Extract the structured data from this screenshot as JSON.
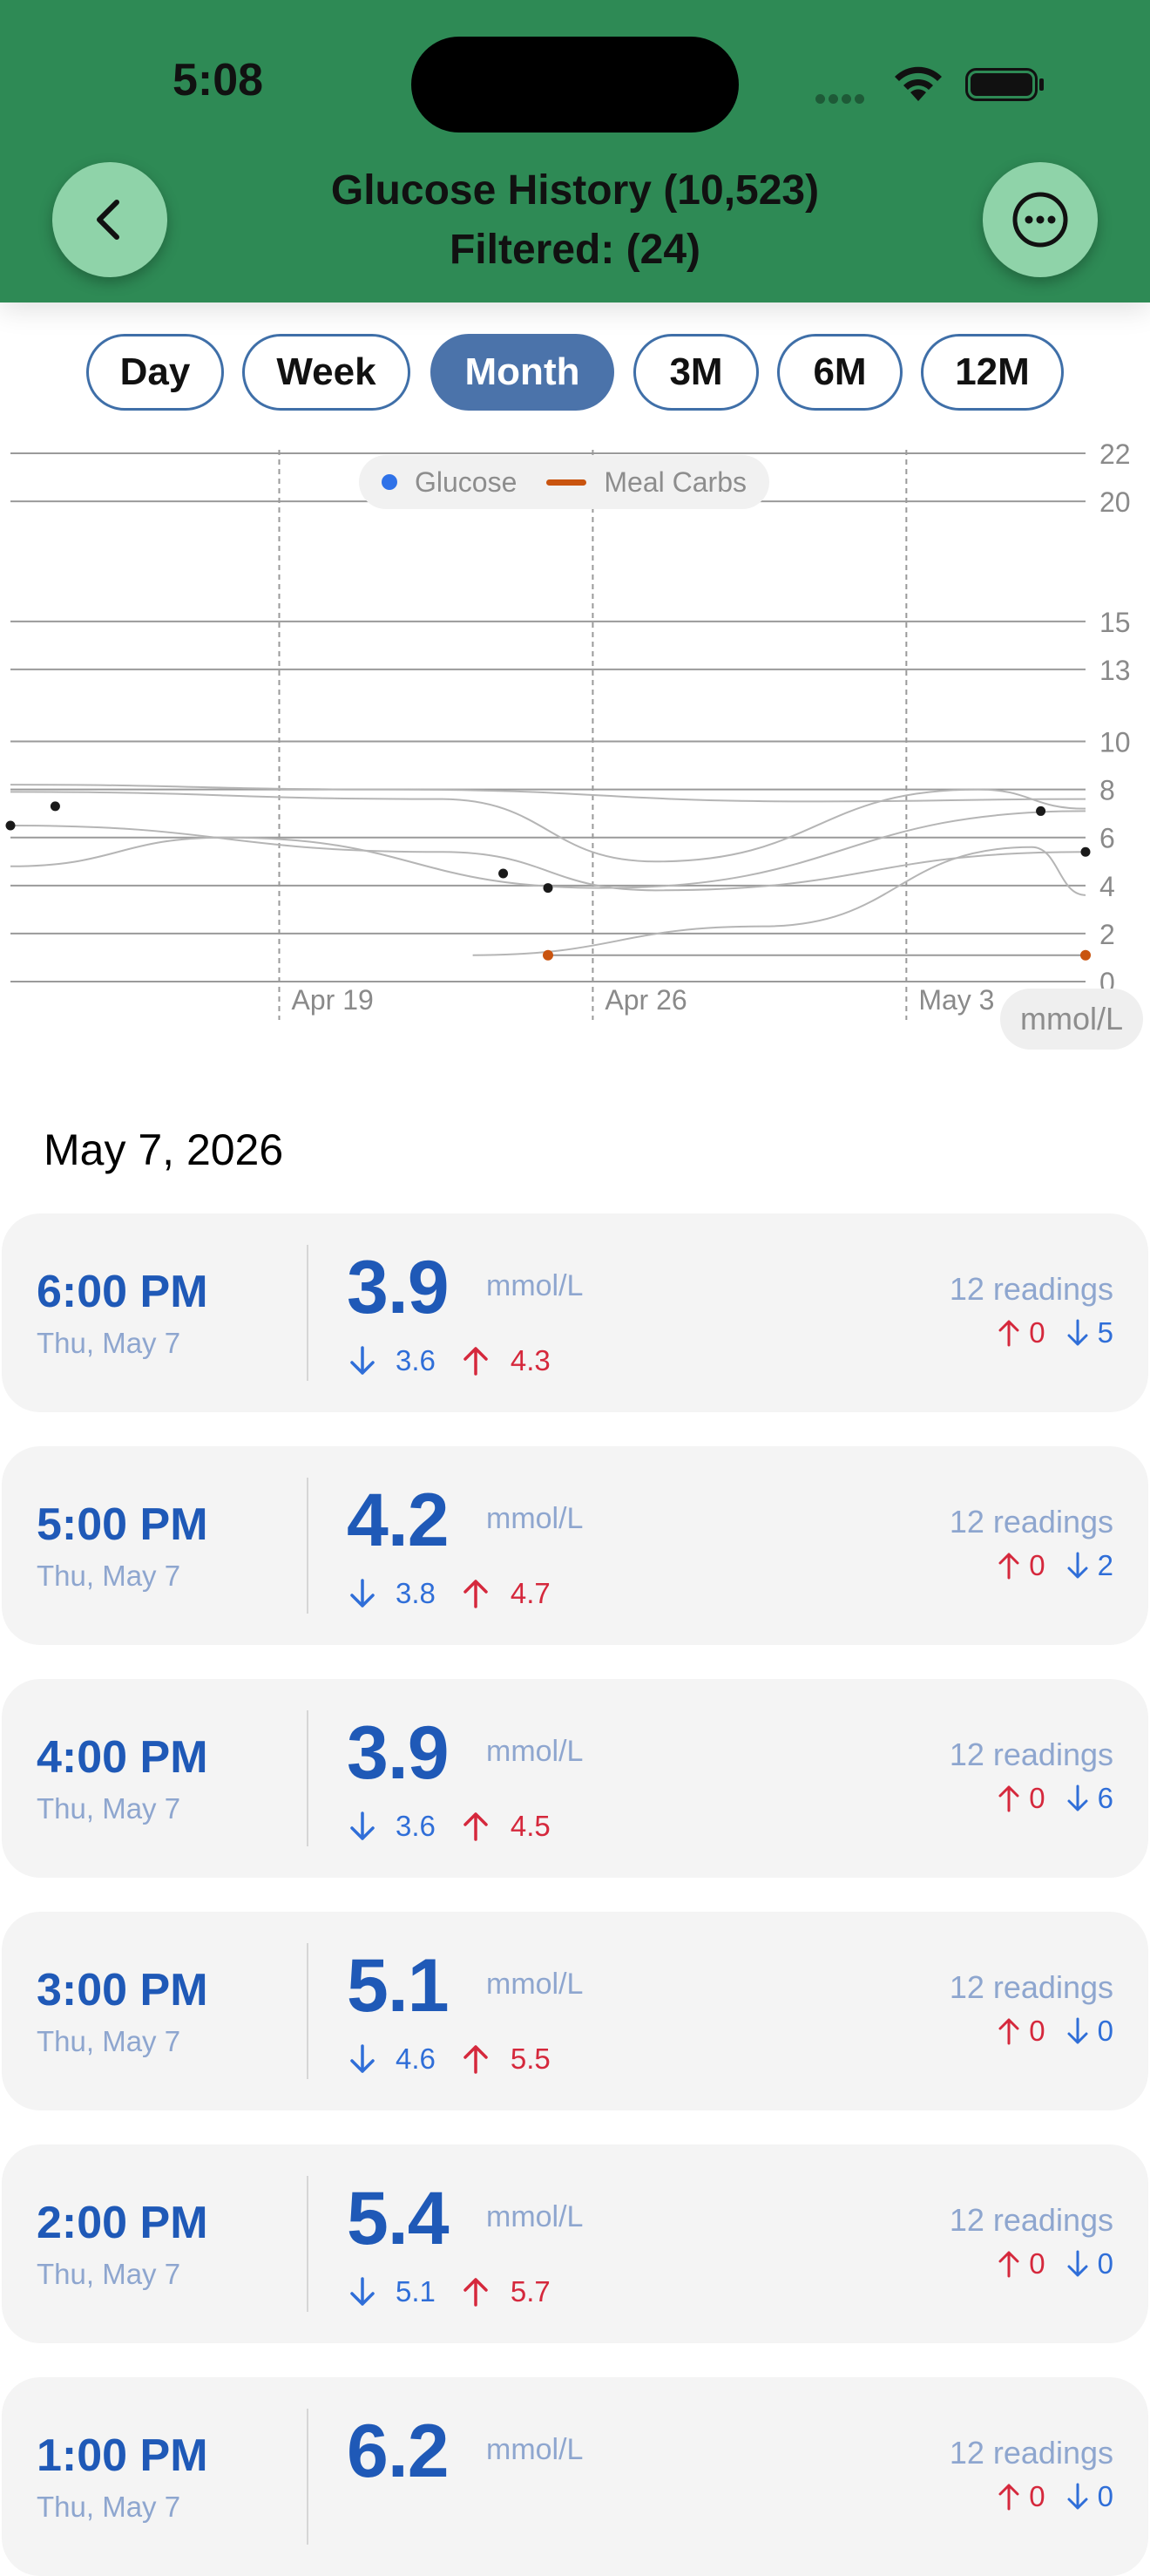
{
  "status_bar": {
    "time": "5:08"
  },
  "header": {
    "title_line1": "Glucose History (10,523)",
    "title_line2": "Filtered: (24)",
    "back_icon": "chevron-left-icon",
    "more_icon": "ellipsis-circle-icon",
    "background_color": "#2e8a55",
    "button_color": "#8fd3a9"
  },
  "range_tabs": [
    {
      "label": "Day",
      "active": false
    },
    {
      "label": "Week",
      "active": false
    },
    {
      "label": "Month",
      "active": true
    },
    {
      "label": "3M",
      "active": false
    },
    {
      "label": "6M",
      "active": false
    },
    {
      "label": "12M",
      "active": false
    }
  ],
  "chart_data": {
    "type": "line",
    "legend": [
      "Glucose",
      "Meal Carbs"
    ],
    "legend_placement": "top-center",
    "unit_label": "mmol/L",
    "y_ticks": [
      0,
      2,
      4,
      6,
      8,
      10,
      13,
      15,
      20,
      22
    ],
    "ylim": [
      0,
      22
    ],
    "x_ticks": [
      "Apr 19",
      "Apr 26",
      "May 3"
    ],
    "x_tick_values": [
      "2026-04-19",
      "2026-04-26",
      "2026-05-03"
    ],
    "xlim": [
      "2026-04-13",
      "2026-05-07"
    ],
    "grid": true,
    "colors": {
      "glucose": "#2f72e8",
      "meal_carbs": "#c9540f",
      "points": "#1a1a1a",
      "lines": "#b5b5b5"
    },
    "series": [
      {
        "name": "Glucose",
        "points": [
          {
            "x": "2026-04-13",
            "y": 6.5
          },
          {
            "x": "2026-04-14",
            "y": 7.3
          },
          {
            "x": "2026-04-24",
            "y": 4.5
          },
          {
            "x": "2026-04-25",
            "y": 3.9
          },
          {
            "x": "2026-05-06",
            "y": 7.1
          },
          {
            "x": "2026-05-07",
            "y": 5.4
          }
        ]
      },
      {
        "name": "Meal Carbs",
        "points": [
          {
            "x": "2026-04-25",
            "y": 1.1
          },
          {
            "x": "2026-05-07",
            "y": 1.1
          }
        ]
      }
    ]
  },
  "list": {
    "section_date": "May 7, 2026",
    "unit": "mmol/L",
    "readings_label": "readings",
    "rows": [
      {
        "time": "6:00 PM",
        "day": "Thu, May 7",
        "value": "3.9",
        "min": "3.6",
        "max": "4.3",
        "readings": "12 readings",
        "up": "0",
        "down": "5"
      },
      {
        "time": "5:00 PM",
        "day": "Thu, May 7",
        "value": "4.2",
        "min": "3.8",
        "max": "4.7",
        "readings": "12 readings",
        "up": "0",
        "down": "2"
      },
      {
        "time": "4:00 PM",
        "day": "Thu, May 7",
        "value": "3.9",
        "min": "3.6",
        "max": "4.5",
        "readings": "12 readings",
        "up": "0",
        "down": "6"
      },
      {
        "time": "3:00 PM",
        "day": "Thu, May 7",
        "value": "5.1",
        "min": "4.6",
        "max": "5.5",
        "readings": "12 readings",
        "up": "0",
        "down": "0"
      },
      {
        "time": "2:00 PM",
        "day": "Thu, May 7",
        "value": "5.4",
        "min": "5.1",
        "max": "5.7",
        "readings": "12 readings",
        "up": "0",
        "down": "0"
      },
      {
        "time": "1:00 PM",
        "day": "Thu, May 7",
        "value": "6.2",
        "min": "",
        "max": "",
        "readings": "12 readings",
        "up": "0",
        "down": "0"
      }
    ]
  }
}
